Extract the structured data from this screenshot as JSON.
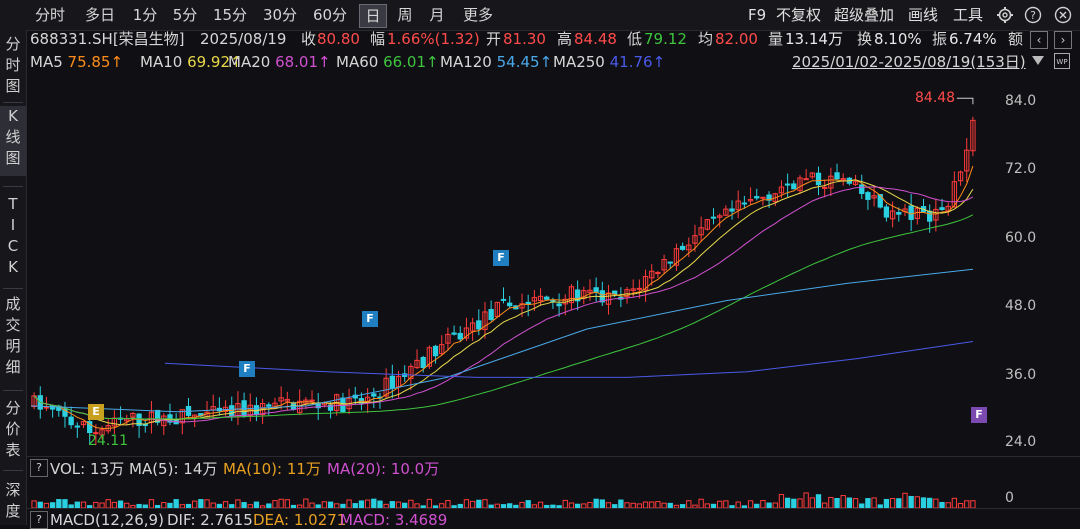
{
  "toolbar": {
    "tabs": [
      "分时",
      "多日",
      "1分",
      "5分",
      "15分",
      "30分",
      "60分",
      "日",
      "周",
      "月",
      "更多"
    ],
    "active_tab": "日",
    "right_items": [
      "F9",
      "不复权",
      "超级叠加",
      "画线",
      "工具"
    ]
  },
  "sidebar": {
    "items": [
      "分时图",
      "K线图",
      "TICK",
      "成交明细",
      "分价表",
      "深度"
    ],
    "active": "K线图"
  },
  "quote": {
    "code_name": "688331.SH[荣昌生物]",
    "date": "2025/08/19",
    "close_label": "收",
    "close": "80.80",
    "change_label": "幅",
    "change": "1.66%(1.32)",
    "open_label": "开",
    "open": "81.30",
    "high_label": "高",
    "high": "84.48",
    "low_label": "低",
    "low": "79.12",
    "avg_label": "均",
    "avg": "82.00",
    "vol_label": "量",
    "vol": "13.14万",
    "turnover_label": "换",
    "turnover": "8.10%",
    "amp_label": "振",
    "amp": "6.74%",
    "amount_label": "额"
  },
  "ma_row": {
    "items": [
      {
        "name": "MA5",
        "value": "75.85↑",
        "color": "#ff8c1a"
      },
      {
        "name": "MA10",
        "value": "69.92↑",
        "color": "#e8d84a"
      },
      {
        "name": "MA20",
        "value": "68.01↑",
        "color": "#d050d0"
      },
      {
        "name": "MA60",
        "value": "66.01↑",
        "color": "#3ec43e"
      },
      {
        "name": "MA120",
        "value": "54.45↑",
        "color": "#4aa8e8"
      },
      {
        "name": "MA250",
        "value": "41.76↑",
        "color": "#4a5ae8"
      }
    ],
    "range": "2025/01/02-2025/08/19(153日)"
  },
  "price_axis": [
    "84.0",
    "72.0",
    "60.0",
    "48.0",
    "36.0",
    "24.0"
  ],
  "annotations": {
    "high": "84.48",
    "low": "24.11"
  },
  "markers": [
    {
      "label": "E",
      "color": "#c8a020"
    },
    {
      "label": "F",
      "color": "#1f7fc0"
    },
    {
      "label": "F",
      "color": "#1f7fc0"
    },
    {
      "label": "F",
      "color": "#1f7fc0"
    },
    {
      "label": "F",
      "color": "#7a4ab0"
    }
  ],
  "volume": {
    "question": "?",
    "vol_label": "VOL: 13万",
    "ma5": "MA(5): 14万",
    "ma10": "MA(10): 11万",
    "ma20": "MA(20): 10.0万",
    "axis_zero": "0"
  },
  "macd": {
    "label": "MACD(12,26,9)",
    "dif": "DIF: 2.7615",
    "dea": "DEA: 1.0271",
    "macd": "MACD: 3.4689"
  },
  "colors": {
    "up": "#ff3b3b",
    "down": "#2ad0e0",
    "bg": "#101014"
  }
}
